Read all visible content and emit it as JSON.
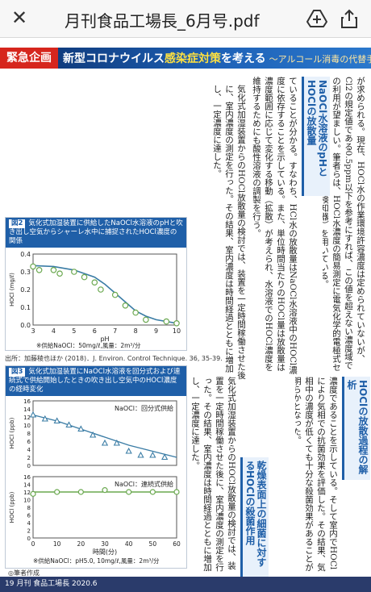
{
  "topbar": {
    "close_label": "✕",
    "title": "月刊食品工場長_6月号.pdf"
  },
  "banner": {
    "tag": "緊急企画",
    "headline_a": "新型コロナウイルス",
    "headline_b": "感染症対策",
    "headline_c": "を考える",
    "subtitle": "〜アルコール消毒の代替手段〜"
  },
  "columns": {
    "c1": "が求められる。現在、HOCl水の作業環境許容濃度は定められていないが、Cl2の規定値である0.5ppm以下を参考にすれば、この値を超えない濃度域での利用が望ましい。筆者らは、HOCl水濃度の簡易測定に電気化学的電極式センサを装備した装置（残留塩素検知器）を用いている。",
    "c2": "ていることが分かる。すなわち、HCl水の放散量はNaOCl水溶液中のHOCl濃度に依存することを示している。また、単位時間当たりのHOCl量は放散量は濃度範囲に応じて変化する移動（拡散）が考えられ、水溶液でのHOCl濃度を維持するためにも酸性溶液の調製を行う。",
    "c3": "気化式加湿装置からのHOCl放散量の検討では、装置を一定時間稼働させた後に、室内濃度の測定を行った。その結果、室内濃度は時間経過とともに増加し、一定濃度に達した。",
    "c4": "濃度であることを示している。そして室内でHOClにより気相での抗菌効果を評価した。その結果、気相中の濃度が低くても十分な殺菌効果があることが明らかとなった。",
    "heading_a": "NaOCl水溶液のpHとHOClの放散量",
    "heading_b": "HOClの放散過程の解析",
    "heading_c": "乾燥表面上の細菌に対するHOClの殺菌作用"
  },
  "fig2": {
    "num": "図2",
    "caption": "気化式加湿装置に供給したNaOCl水溶液のpHと吹き出し空気からシャーレ水中に捕捉されたHOCl濃度の関係",
    "note": "※供給NaOCl：50mg/ℓ,風量：2m³/分",
    "source": "出所：加藤稜也ほか (2018)．J. Environ. Control Technique. 36, 35-39."
  },
  "fig3": {
    "num": "図3",
    "caption": "気化式加湿装置にNaOCl水溶液を回分式および連続式で供給開始したときの吹き出し空気中のHOCl濃度の経時変化",
    "note": "※供給NaOCl：pH5.0, 10mg/ℓ,風量：2m³/分",
    "author": "◎筆者作成"
  },
  "footer": {
    "text": "19  月刊 食品工場長  2020.6"
  },
  "chart_data": [
    {
      "type": "scatter",
      "title": "",
      "xlabel": "pH",
      "ylabel": "HOCl (mg/ℓ)",
      "xlim": [
        3,
        10
      ],
      "ylim": [
        0,
        0.4
      ],
      "xticks": [
        "3",
        "4",
        "5",
        "6",
        "7",
        "8",
        "9",
        "10"
      ],
      "yticks": [
        "0.0",
        "0.1",
        "0.2",
        "0.3",
        "0.4"
      ],
      "series": [
        {
          "x": [
            3.0,
            3.3,
            4.0,
            4.3,
            5.0,
            5.5,
            6.0,
            6.3,
            7.0,
            7.5,
            8.0,
            8.5,
            9.5,
            10.0
          ],
          "y": [
            0.33,
            0.31,
            0.31,
            0.29,
            0.3,
            0.27,
            0.24,
            0.2,
            0.17,
            0.11,
            0.07,
            0.03,
            0.02,
            0.01
          ]
        }
      ],
      "fit": {
        "x": [
          3,
          4,
          5,
          6,
          6.5,
          7,
          7.5,
          8,
          8.5,
          9,
          10
        ],
        "y": [
          0.335,
          0.33,
          0.31,
          0.27,
          0.23,
          0.18,
          0.13,
          0.08,
          0.05,
          0.03,
          0.01
        ]
      }
    },
    {
      "type": "scatter",
      "title": "",
      "xlabel": "時間(分)",
      "ylabel": "HOCl (ppb)",
      "panels": [
        {
          "label": "NaOCl：回分式供給",
          "xlim": [
            0,
            60
          ],
          "ylim": [
            0,
            16
          ],
          "yticks": [
            "0",
            "2",
            "4",
            "6",
            "8",
            "10",
            "12",
            "14",
            "16"
          ],
          "x": [
            0,
            5,
            10,
            15,
            20,
            25,
            30,
            35,
            40,
            45,
            50,
            55
          ],
          "y": [
            12.5,
            11.5,
            11,
            10,
            9,
            7.5,
            5.5,
            5.5,
            3.5,
            2.5,
            2.5,
            2
          ],
          "fit": {
            "x": [
              0,
              10,
              20,
              30,
              40,
              50,
              60
            ],
            "y": [
              12.5,
              11,
              9,
              7,
              5,
              3.5,
              2
            ]
          }
        },
        {
          "label": "NaOCl：連続式供給",
          "xlim": [
            0,
            60
          ],
          "ylim": [
            0,
            16
          ],
          "yticks": [
            "0",
            "2",
            "4",
            "6",
            "8",
            "10",
            "12",
            "14",
            "16"
          ],
          "x": [
            0,
            10,
            20,
            30,
            40,
            50,
            60
          ],
          "y": [
            11.5,
            12,
            12,
            12.5,
            12,
            12,
            12
          ],
          "fit": {
            "x": [
              0,
              60
            ],
            "y": [
              12,
              12
            ]
          }
        }
      ],
      "xticks": [
        "0",
        "10",
        "20",
        "30",
        "40",
        "50",
        "60"
      ]
    }
  ]
}
